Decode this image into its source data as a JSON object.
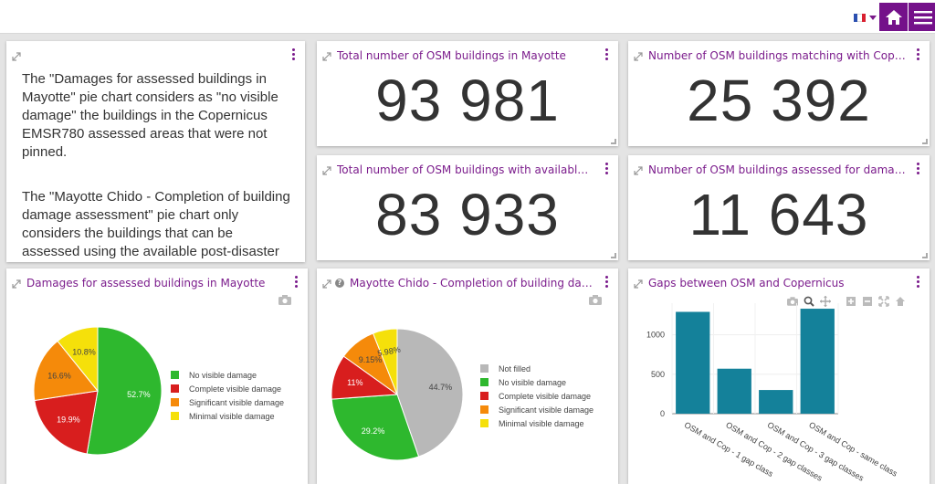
{
  "header": {
    "language": "FR",
    "home_icon": "home-icon",
    "menu_icon": "hamburger-menu-icon",
    "colors": {
      "brand": "#74118a",
      "title": "#7b1c8c"
    }
  },
  "info_panel": {
    "paragraph1": "The \"Damages for assessed buildings in Mayotte\" pie chart considers as \"no visible damage\" the buildings in the Copernicus EMSR780 assessed areas that were not pinned.",
    "paragraph2": "The \"Mayotte Chido - Completion of building damage assessment\" pie chart only considers the buildings that can be assessed using the available post-disaster imagery (no clouds)."
  },
  "kpis": [
    {
      "title": "Total number of OSM buildings in Mayotte",
      "value": "93 981"
    },
    {
      "title": "Number of OSM buildings matching with Copernic...",
      "value": "25 392"
    },
    {
      "title": "Total number of OSM buildings with available post-...",
      "value": "83 933"
    },
    {
      "title": "Number of OSM buildings assessed for damage in ...",
      "value": "11 643"
    }
  ],
  "chart_data": [
    {
      "type": "pie",
      "title": "Damages for assessed buildings in Mayotte",
      "labels": [
        "No visible damage",
        "Complete visible damage",
        "Significant visible damage",
        "Minimal visible damage"
      ],
      "values": [
        52.7,
        19.9,
        16.6,
        10.8
      ],
      "value_labels": [
        "52.7%",
        "19.9%",
        "16.6%",
        "10.8%"
      ],
      "colors": [
        "#2eb82e",
        "#d81e1e",
        "#f58a0a",
        "#f5e00a"
      ],
      "legend": "right"
    },
    {
      "type": "pie",
      "title": "Mayotte Chido - Completion of building damage ...",
      "labels": [
        "Not filled",
        "No visible damage",
        "Complete visible damage",
        "Significant visible damage",
        "Minimal visible damage"
      ],
      "values": [
        44.7,
        29.2,
        11,
        9.15,
        5.98
      ],
      "value_labels": [
        "44.7%",
        "29.2%",
        "11%",
        "9.15%",
        "5.98%"
      ],
      "colors": [
        "#b8b8b8",
        "#2eb82e",
        "#d81e1e",
        "#f58a0a",
        "#f5e00a"
      ],
      "legend": "right"
    },
    {
      "type": "bar",
      "title": "Gaps between OSM and Copernicus",
      "categories": [
        "OSM and Cop - 1 gap class",
        "OSM and Cop - 2 gap classes",
        "OSM and Cop - 3 gap classes",
        "OSM and Cop - same class"
      ],
      "values": [
        1290,
        570,
        300,
        1330
      ],
      "ylim": [
        0,
        1400
      ],
      "yticks": [
        0,
        500,
        1000
      ],
      "color": "#14819a",
      "grid": true
    }
  ]
}
